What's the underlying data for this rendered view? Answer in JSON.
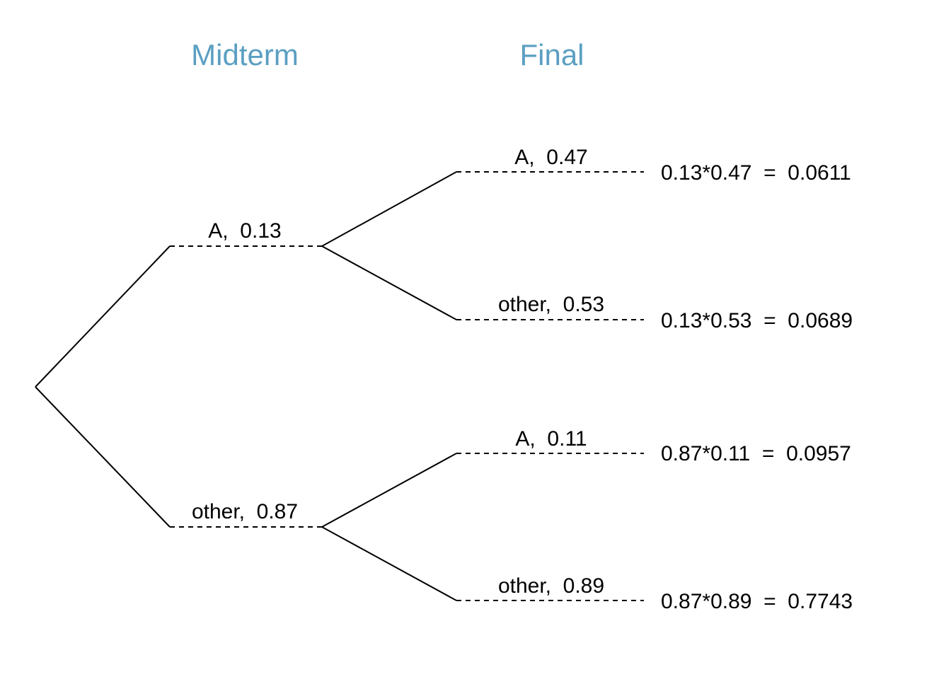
{
  "headers": {
    "level1": "Midterm",
    "level2": "Final"
  },
  "colors": {
    "header": "#5b9fc2",
    "lines": "#000000"
  },
  "tree": {
    "level1": [
      {
        "label": "A,  0.13",
        "children": [
          {
            "label": "A,  0.47",
            "result": "0.13*0.47  =  0.0611"
          },
          {
            "label": "other,  0.53",
            "result": "0.13*0.53  =  0.0689"
          }
        ]
      },
      {
        "label": "other,  0.87",
        "children": [
          {
            "label": "A,  0.11",
            "result": "0.87*0.11  =  0.0957"
          },
          {
            "label": "other,  0.89",
            "result": "0.87*0.89  =  0.7743"
          }
        ]
      }
    ]
  }
}
